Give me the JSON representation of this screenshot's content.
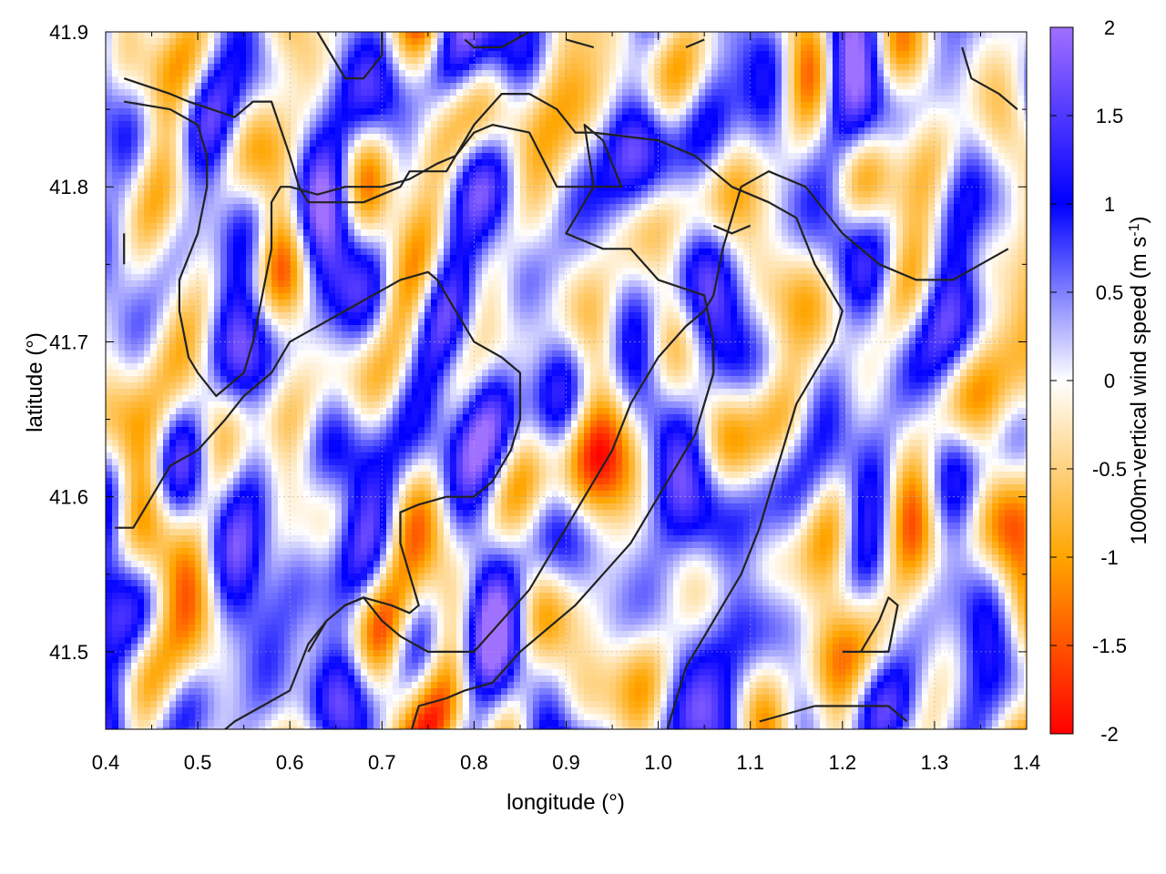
{
  "chart_data": {
    "type": "heatmap",
    "title": "",
    "xlabel": "longitude (°)",
    "ylabel": "latitude (°)",
    "xlim": [
      0.4,
      1.4
    ],
    "ylim": [
      41.45,
      41.9
    ],
    "x_ticks": [
      0.4,
      0.5,
      0.6,
      0.7,
      0.8,
      0.9,
      1.0,
      1.1,
      1.2,
      1.3,
      1.4
    ],
    "x_tick_labels": [
      "0.4",
      "0.5",
      "0.6",
      "0.7",
      "0.8",
      "0.9",
      "1.0",
      "1.1",
      "1.2",
      "1.3",
      "1.4"
    ],
    "y_ticks": [
      41.5,
      41.6,
      41.7,
      41.8,
      41.9
    ],
    "y_tick_labels": [
      "41.5",
      "41.6",
      "41.7",
      "41.8",
      "41.9"
    ],
    "grid": true,
    "colorbar": {
      "label_main": "1000m-vertical wind speed (m s",
      "label_sup": "-1",
      "label_close": ")",
      "range": [
        -2,
        2
      ],
      "ticks": [
        -2,
        -1.5,
        -1,
        -0.5,
        0,
        0.5,
        1,
        1.5,
        2
      ],
      "tick_labels": [
        "-2",
        "-1.5",
        "-1",
        "-0.5",
        "0",
        "0.5",
        "1",
        "1.5",
        "2"
      ],
      "stops": [
        {
          "value": -2,
          "color": "#ff0000"
        },
        {
          "value": -1,
          "color": "#ffa500"
        },
        {
          "value": 0,
          "color": "#ffffff"
        },
        {
          "value": 1,
          "color": "#0000ff"
        },
        {
          "value": 2,
          "color": "#a070ff"
        }
      ]
    },
    "contours": [
      [
        [
          0.42,
          41.87
        ],
        [
          0.47,
          41.86
        ],
        [
          0.49,
          41.855
        ],
        [
          0.54,
          41.845
        ],
        [
          0.56,
          41.855
        ],
        [
          0.58,
          41.855
        ],
        [
          0.6,
          41.82
        ],
        [
          0.61,
          41.8
        ],
        [
          0.62,
          41.79
        ],
        [
          0.68,
          41.79
        ],
        [
          0.72,
          41.8
        ],
        [
          0.73,
          41.81
        ],
        [
          0.77,
          41.81
        ],
        [
          0.78,
          41.82
        ],
        [
          0.8,
          41.84
        ],
        [
          0.83,
          41.86
        ],
        [
          0.86,
          41.86
        ],
        [
          0.89,
          41.85
        ],
        [
          0.91,
          41.835
        ],
        [
          0.93,
          41.835
        ],
        [
          1.0,
          41.83
        ],
        [
          1.04,
          41.82
        ],
        [
          1.08,
          41.8
        ],
        [
          1.12,
          41.79
        ],
        [
          1.15,
          41.78
        ],
        [
          1.17,
          41.75
        ],
        [
          1.19,
          41.73
        ],
        [
          1.2,
          41.72
        ],
        [
          1.19,
          41.7
        ],
        [
          1.17,
          41.68
        ],
        [
          1.16,
          41.67
        ],
        [
          1.15,
          41.66
        ],
        [
          1.14,
          41.64
        ],
        [
          1.13,
          41.62
        ],
        [
          1.12,
          41.6
        ],
        [
          1.11,
          41.58
        ],
        [
          1.09,
          41.55
        ],
        [
          1.07,
          41.53
        ],
        [
          1.05,
          41.51
        ],
        [
          1.03,
          41.49
        ],
        [
          1.02,
          41.47
        ],
        [
          1.01,
          41.45
        ]
      ],
      [
        [
          0.42,
          41.855
        ],
        [
          0.47,
          41.85
        ],
        [
          0.5,
          41.84
        ],
        [
          0.51,
          41.82
        ],
        [
          0.51,
          41.8
        ],
        [
          0.5,
          41.77
        ],
        [
          0.48,
          41.74
        ],
        [
          0.48,
          41.72
        ],
        [
          0.49,
          41.69
        ],
        [
          0.5,
          41.68
        ],
        [
          0.52,
          41.665
        ],
        [
          0.53,
          41.67
        ],
        [
          0.55,
          41.68
        ],
        [
          0.56,
          41.7
        ],
        [
          0.57,
          41.73
        ],
        [
          0.58,
          41.76
        ],
        [
          0.58,
          41.79
        ],
        [
          0.59,
          41.8
        ],
        [
          0.6,
          41.8
        ],
        [
          0.63,
          41.795
        ],
        [
          0.66,
          41.8
        ],
        [
          0.7,
          41.8
        ],
        [
          0.73,
          41.805
        ],
        [
          0.76,
          41.815
        ],
        [
          0.78,
          41.82
        ],
        [
          0.8,
          41.835
        ],
        [
          0.82,
          41.84
        ],
        [
          0.86,
          41.835
        ],
        [
          0.89,
          41.8
        ],
        [
          0.91,
          41.8
        ],
        [
          0.93,
          41.8
        ],
        [
          0.96,
          41.8
        ],
        [
          0.94,
          41.83
        ],
        [
          0.92,
          41.84
        ],
        [
          0.93,
          41.8
        ],
        [
          0.9,
          41.77
        ],
        [
          0.94,
          41.76
        ],
        [
          0.97,
          41.76
        ],
        [
          1.0,
          41.74
        ],
        [
          1.05,
          41.73
        ],
        [
          1.06,
          41.7
        ],
        [
          1.06,
          41.68
        ],
        [
          1.05,
          41.66
        ],
        [
          1.04,
          41.64
        ],
        [
          1.02,
          41.62
        ],
        [
          1.0,
          41.6
        ],
        [
          0.97,
          41.57
        ],
        [
          0.94,
          41.55
        ],
        [
          0.91,
          41.53
        ],
        [
          0.89,
          41.52
        ],
        [
          0.85,
          41.5
        ],
        [
          0.82,
          41.48
        ],
        [
          0.79,
          41.475
        ],
        [
          0.77,
          41.47
        ],
        [
          0.74,
          41.465
        ],
        [
          0.73,
          41.445
        ]
      ],
      [
        [
          0.41,
          41.58
        ],
        [
          0.43,
          41.58
        ],
        [
          0.45,
          41.6
        ],
        [
          0.47,
          41.62
        ],
        [
          0.5,
          41.63
        ],
        [
          0.53,
          41.65
        ],
        [
          0.55,
          41.665
        ],
        [
          0.58,
          41.68
        ],
        [
          0.6,
          41.7
        ],
        [
          0.63,
          41.71
        ],
        [
          0.66,
          41.72
        ],
        [
          0.69,
          41.73
        ],
        [
          0.72,
          41.74
        ],
        [
          0.75,
          41.745
        ],
        [
          0.76,
          41.74
        ],
        [
          0.78,
          41.72
        ],
        [
          0.8,
          41.7
        ],
        [
          0.83,
          41.69
        ],
        [
          0.85,
          41.68
        ],
        [
          0.85,
          41.65
        ],
        [
          0.84,
          41.63
        ],
        [
          0.83,
          41.62
        ],
        [
          0.82,
          41.61
        ],
        [
          0.8,
          41.6
        ],
        [
          0.77,
          41.6
        ],
        [
          0.74,
          41.595
        ],
        [
          0.72,
          41.59
        ],
        [
          0.72,
          41.57
        ],
        [
          0.73,
          41.55
        ],
        [
          0.74,
          41.53
        ],
        [
          0.73,
          41.525
        ],
        [
          0.71,
          41.53
        ],
        [
          0.68,
          41.535
        ],
        [
          0.66,
          41.53
        ],
        [
          0.64,
          41.52
        ],
        [
          0.62,
          41.505
        ],
        [
          0.61,
          41.49
        ],
        [
          0.6,
          41.475
        ],
        [
          0.57,
          41.465
        ],
        [
          0.54,
          41.455
        ],
        [
          0.52,
          41.445
        ]
      ],
      [
        [
          0.62,
          41.5
        ],
        [
          0.64,
          41.52
        ],
        [
          0.66,
          41.53
        ],
        [
          0.68,
          41.535
        ],
        [
          0.7,
          41.52
        ],
        [
          0.72,
          41.51
        ],
        [
          0.75,
          41.5
        ],
        [
          0.78,
          41.5
        ],
        [
          0.8,
          41.5
        ],
        [
          0.83,
          41.52
        ],
        [
          0.86,
          41.54
        ],
        [
          0.89,
          41.57
        ],
        [
          0.92,
          41.6
        ],
        [
          0.95,
          41.63
        ],
        [
          0.97,
          41.66
        ],
        [
          1.0,
          41.69
        ],
        [
          1.03,
          41.71
        ],
        [
          1.05,
          41.72
        ],
        [
          1.06,
          41.73
        ],
        [
          1.07,
          41.76
        ],
        [
          1.08,
          41.78
        ],
        [
          1.09,
          41.8
        ],
        [
          1.12,
          41.81
        ],
        [
          1.16,
          41.8
        ],
        [
          1.2,
          41.77
        ],
        [
          1.24,
          41.75
        ],
        [
          1.28,
          41.74
        ],
        [
          1.32,
          41.74
        ],
        [
          1.35,
          41.75
        ],
        [
          1.38,
          41.76
        ]
      ],
      [
        [
          1.11,
          41.455
        ],
        [
          1.14,
          41.46
        ],
        [
          1.17,
          41.465
        ],
        [
          1.2,
          41.465
        ],
        [
          1.23,
          41.465
        ],
        [
          1.25,
          41.465
        ],
        [
          1.27,
          41.455
        ]
      ],
      [
        [
          1.2,
          41.5
        ],
        [
          1.23,
          41.5
        ],
        [
          1.25,
          41.5
        ],
        [
          1.26,
          41.53
        ],
        [
          1.25,
          41.535
        ],
        [
          1.24,
          41.52
        ],
        [
          1.22,
          41.5
        ]
      ],
      [
        [
          0.63,
          41.9
        ],
        [
          0.65,
          41.88
        ],
        [
          0.66,
          41.87
        ],
        [
          0.68,
          41.87
        ],
        [
          0.7,
          41.885
        ],
        [
          0.7,
          41.9
        ]
      ],
      [
        [
          0.79,
          41.895
        ],
        [
          0.8,
          41.89
        ],
        [
          0.83,
          41.89
        ],
        [
          0.86,
          41.9
        ]
      ],
      [
        [
          0.9,
          41.895
        ],
        [
          0.93,
          41.89
        ]
      ],
      [
        [
          1.03,
          41.89
        ],
        [
          1.05,
          41.895
        ]
      ],
      [
        [
          1.33,
          41.89
        ],
        [
          1.34,
          41.87
        ],
        [
          1.37,
          41.86
        ],
        [
          1.39,
          41.85
        ]
      ],
      [
        [
          0.42,
          41.77
        ],
        [
          0.42,
          41.75
        ]
      ],
      [
        [
          1.06,
          41.775
        ],
        [
          1.08,
          41.77
        ],
        [
          1.1,
          41.775
        ]
      ]
    ]
  }
}
